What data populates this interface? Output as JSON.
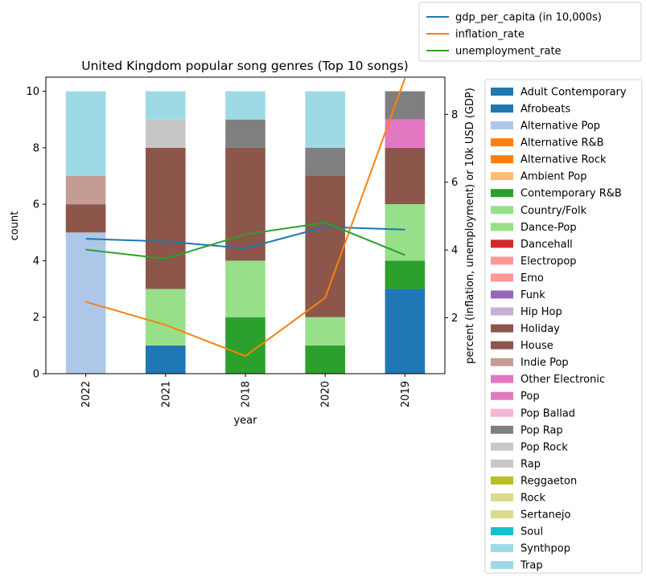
{
  "chart_data": {
    "type": "bar",
    "stacked": true,
    "title": "United Kingdom popular song genres (Top 10 songs)",
    "xlabel": "year",
    "ylabel": "count",
    "y2label": "percent (inflation, unemployment) or 10k USD (GDP)",
    "categories": [
      "2022",
      "2021",
      "2018",
      "2020",
      "2019"
    ],
    "ylim": [
      0,
      10.5
    ],
    "yticks": [
      0,
      2,
      4,
      6,
      8,
      10
    ],
    "y2lim": [
      0.35,
      9.1
    ],
    "y2ticks": [
      2,
      4,
      6,
      8
    ],
    "grid": false,
    "legend_placement": "right",
    "genres": [
      {
        "name": "Adult Contemporary",
        "color": "#1f77b4",
        "values": [
          0,
          0,
          0,
          0,
          3
        ]
      },
      {
        "name": "Afrobeats",
        "color": "#1f77b4",
        "values": [
          0,
          1,
          0,
          0,
          0
        ]
      },
      {
        "name": "Alternative Pop",
        "color": "#aec7e8",
        "values": [
          5,
          0,
          0,
          0,
          0
        ]
      },
      {
        "name": "Alternative R&B",
        "color": "#ff7f0e",
        "values": [
          0,
          0,
          0,
          0,
          0
        ]
      },
      {
        "name": "Alternative Rock",
        "color": "#ff7f0e",
        "values": [
          0,
          0,
          0,
          0,
          0
        ]
      },
      {
        "name": "Ambient Pop",
        "color": "#ffbb78",
        "values": [
          0,
          0,
          0,
          0,
          0
        ]
      },
      {
        "name": "Contemporary R&B",
        "color": "#2ca02c",
        "values": [
          0,
          0,
          2,
          1,
          1
        ]
      },
      {
        "name": "Country/Folk",
        "color": "#98df8a",
        "values": [
          0,
          0,
          0,
          0,
          0
        ]
      },
      {
        "name": "Dance-Pop",
        "color": "#98df8a",
        "values": [
          0,
          2,
          2,
          1,
          2
        ]
      },
      {
        "name": "Dancehall",
        "color": "#d62728",
        "values": [
          0,
          0,
          0,
          0,
          0
        ]
      },
      {
        "name": "Electropop",
        "color": "#ff9896",
        "values": [
          0,
          0,
          0,
          0,
          0
        ]
      },
      {
        "name": "Emo",
        "color": "#ff9896",
        "values": [
          0,
          0,
          0,
          0,
          0
        ]
      },
      {
        "name": "Funk",
        "color": "#9467bd",
        "values": [
          0,
          0,
          0,
          0,
          0
        ]
      },
      {
        "name": "Hip Hop",
        "color": "#c5b0d5",
        "values": [
          0,
          0,
          0,
          0,
          0
        ]
      },
      {
        "name": "Holiday",
        "color": "#8c564b",
        "values": [
          1,
          5,
          4,
          5,
          2
        ]
      },
      {
        "name": "House",
        "color": "#8c564b",
        "values": [
          0,
          0,
          0,
          0,
          0
        ]
      },
      {
        "name": "Indie Pop",
        "color": "#c49c94",
        "values": [
          1,
          0,
          0,
          0,
          0
        ]
      },
      {
        "name": "Other Electronic",
        "color": "#e377c2",
        "values": [
          0,
          0,
          0,
          0,
          0
        ]
      },
      {
        "name": "Pop",
        "color": "#e377c2",
        "values": [
          0,
          0,
          0,
          0,
          1
        ]
      },
      {
        "name": "Pop Ballad",
        "color": "#f7b6d2",
        "values": [
          0,
          0,
          0,
          0,
          0
        ]
      },
      {
        "name": "Pop Rap",
        "color": "#7f7f7f",
        "values": [
          0,
          0,
          1,
          1,
          1
        ]
      },
      {
        "name": "Pop Rock",
        "color": "#c7c7c7",
        "values": [
          0,
          1,
          0,
          0,
          0
        ]
      },
      {
        "name": "Rap",
        "color": "#c7c7c7",
        "values": [
          0,
          0,
          0,
          0,
          0
        ]
      },
      {
        "name": "Reggaeton",
        "color": "#bcbd22",
        "values": [
          0,
          0,
          0,
          0,
          0
        ]
      },
      {
        "name": "Rock",
        "color": "#dbdb8d",
        "values": [
          0,
          0,
          0,
          0,
          0
        ]
      },
      {
        "name": "Sertanejo",
        "color": "#dbdb8d",
        "values": [
          0,
          0,
          0,
          0,
          0
        ]
      },
      {
        "name": "Soul",
        "color": "#17becf",
        "values": [
          0,
          0,
          0,
          0,
          0
        ]
      },
      {
        "name": "Synthpop",
        "color": "#9edae5",
        "values": [
          3,
          1,
          1,
          2,
          0
        ]
      },
      {
        "name": "Trap",
        "color": "#9edae5",
        "values": [
          0,
          0,
          0,
          0,
          0
        ]
      }
    ],
    "lines": [
      {
        "name": "gdp_per_capita (in 10,000s)",
        "color": "#1f77b4",
        "values": [
          4.33,
          4.25,
          4.05,
          4.68,
          4.6
        ]
      },
      {
        "name": "inflation_rate",
        "color": "#ff7f0e",
        "values": [
          2.47,
          1.79,
          0.87,
          2.59,
          9.07
        ]
      },
      {
        "name": "unemployment_rate",
        "color": "#2ca02c",
        "values": [
          4.01,
          3.74,
          4.46,
          4.81,
          3.85
        ]
      }
    ]
  }
}
